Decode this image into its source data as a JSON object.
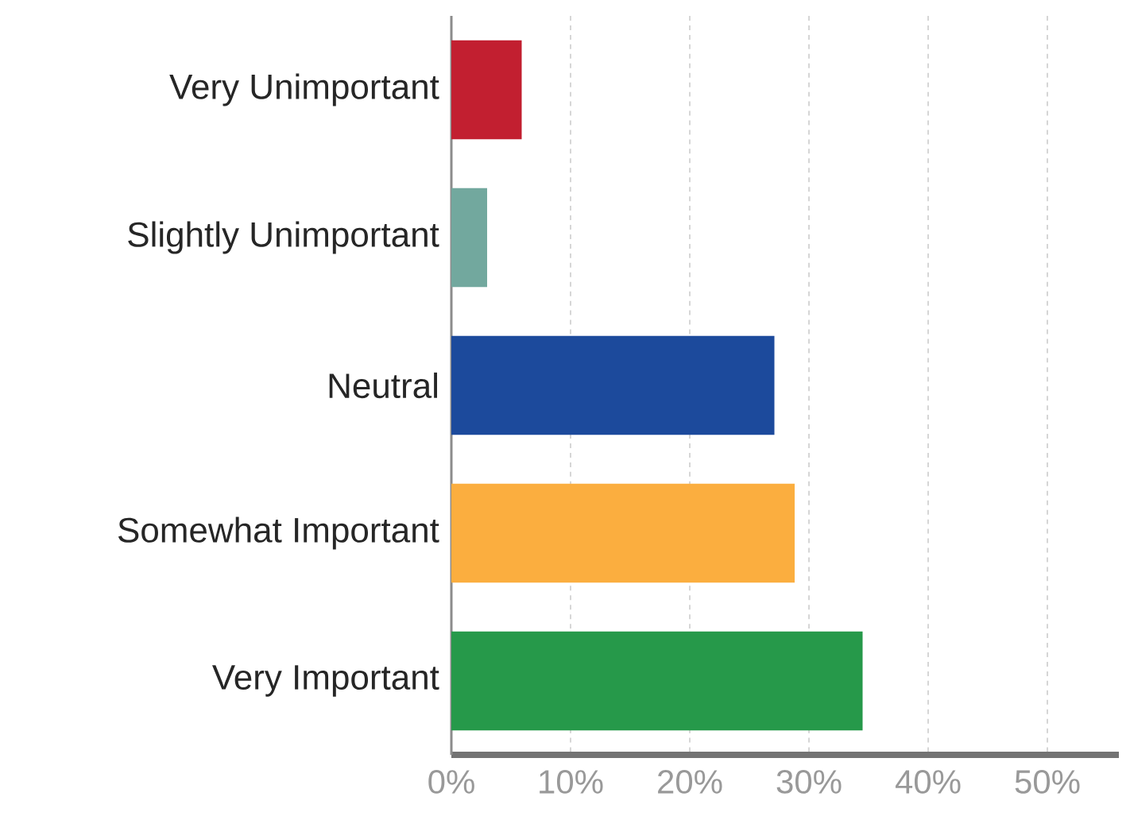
{
  "chart_data": {
    "type": "bar",
    "orientation": "horizontal",
    "categories": [
      "Very Unimportant",
      "Slightly Unimportant",
      "Neutral",
      "Somewhat Important",
      "Very Important"
    ],
    "values": [
      5.9,
      3.0,
      27.1,
      28.8,
      34.5
    ],
    "colors": [
      "#c21f30",
      "#72a89e",
      "#1c4a9c",
      "#fbae3f",
      "#26994a"
    ],
    "xlim": [
      0,
      56
    ],
    "xticks": [
      {
        "value": 0,
        "label": "0%"
      },
      {
        "value": 10,
        "label": "10%"
      },
      {
        "value": 20,
        "label": "20%"
      },
      {
        "value": 30,
        "label": "30%"
      },
      {
        "value": 40,
        "label": "40%"
      },
      {
        "value": 50,
        "label": "50%"
      }
    ],
    "grid": "x"
  }
}
